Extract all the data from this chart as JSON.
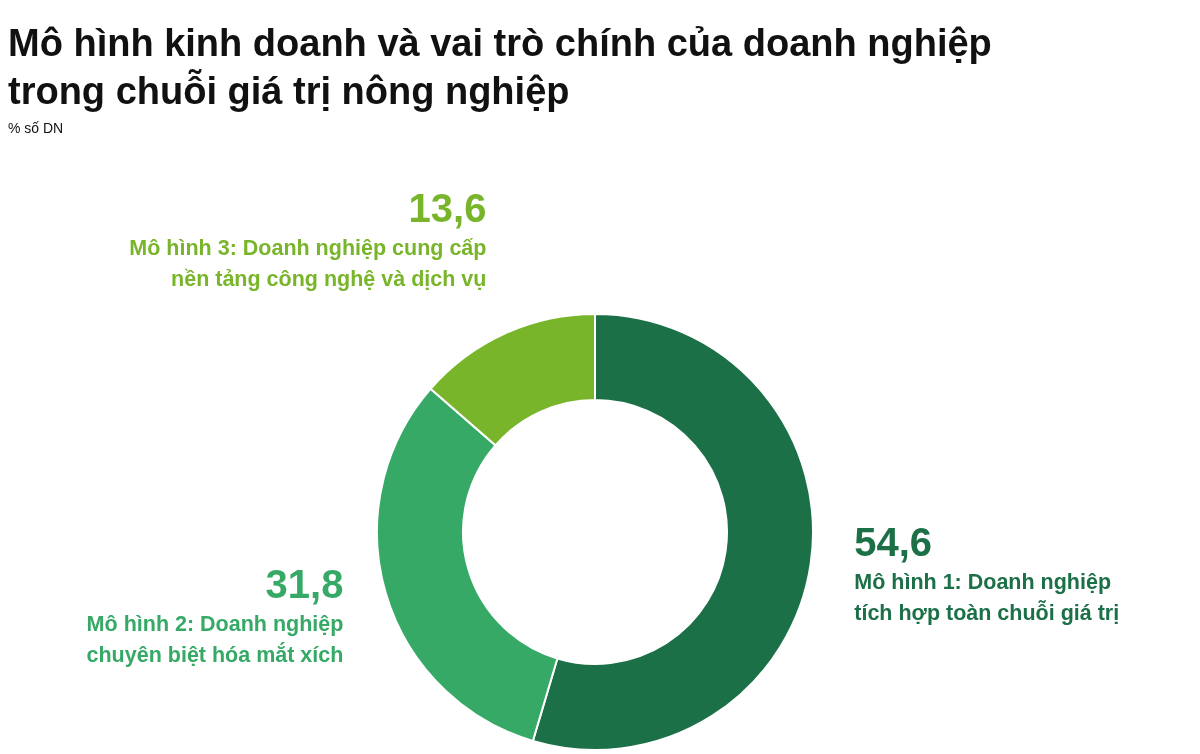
{
  "chart_data": {
    "type": "donut",
    "title": "Mô hình kinh doanh và vai trò chính của doanh nghiệp trong chuỗi giá trị nông nghiệp",
    "subtitle": "% số DN",
    "categories": [
      "Mô hình 1: Doanh nghiệp tích hợp toàn chuỗi giá trị",
      "Mô hình 2: Doanh nghiệp chuyên biệt hóa mắt xích",
      "Mô hình 3: Doanh nghiệp cung cấp nền tảng công nghệ và dịch vụ"
    ],
    "values": [
      54.6,
      31.8,
      13.6
    ],
    "colors": [
      "#1b7047",
      "#35a965",
      "#79b52a"
    ],
    "value_labels": [
      "54,6",
      "31,8",
      "13,6"
    ]
  }
}
